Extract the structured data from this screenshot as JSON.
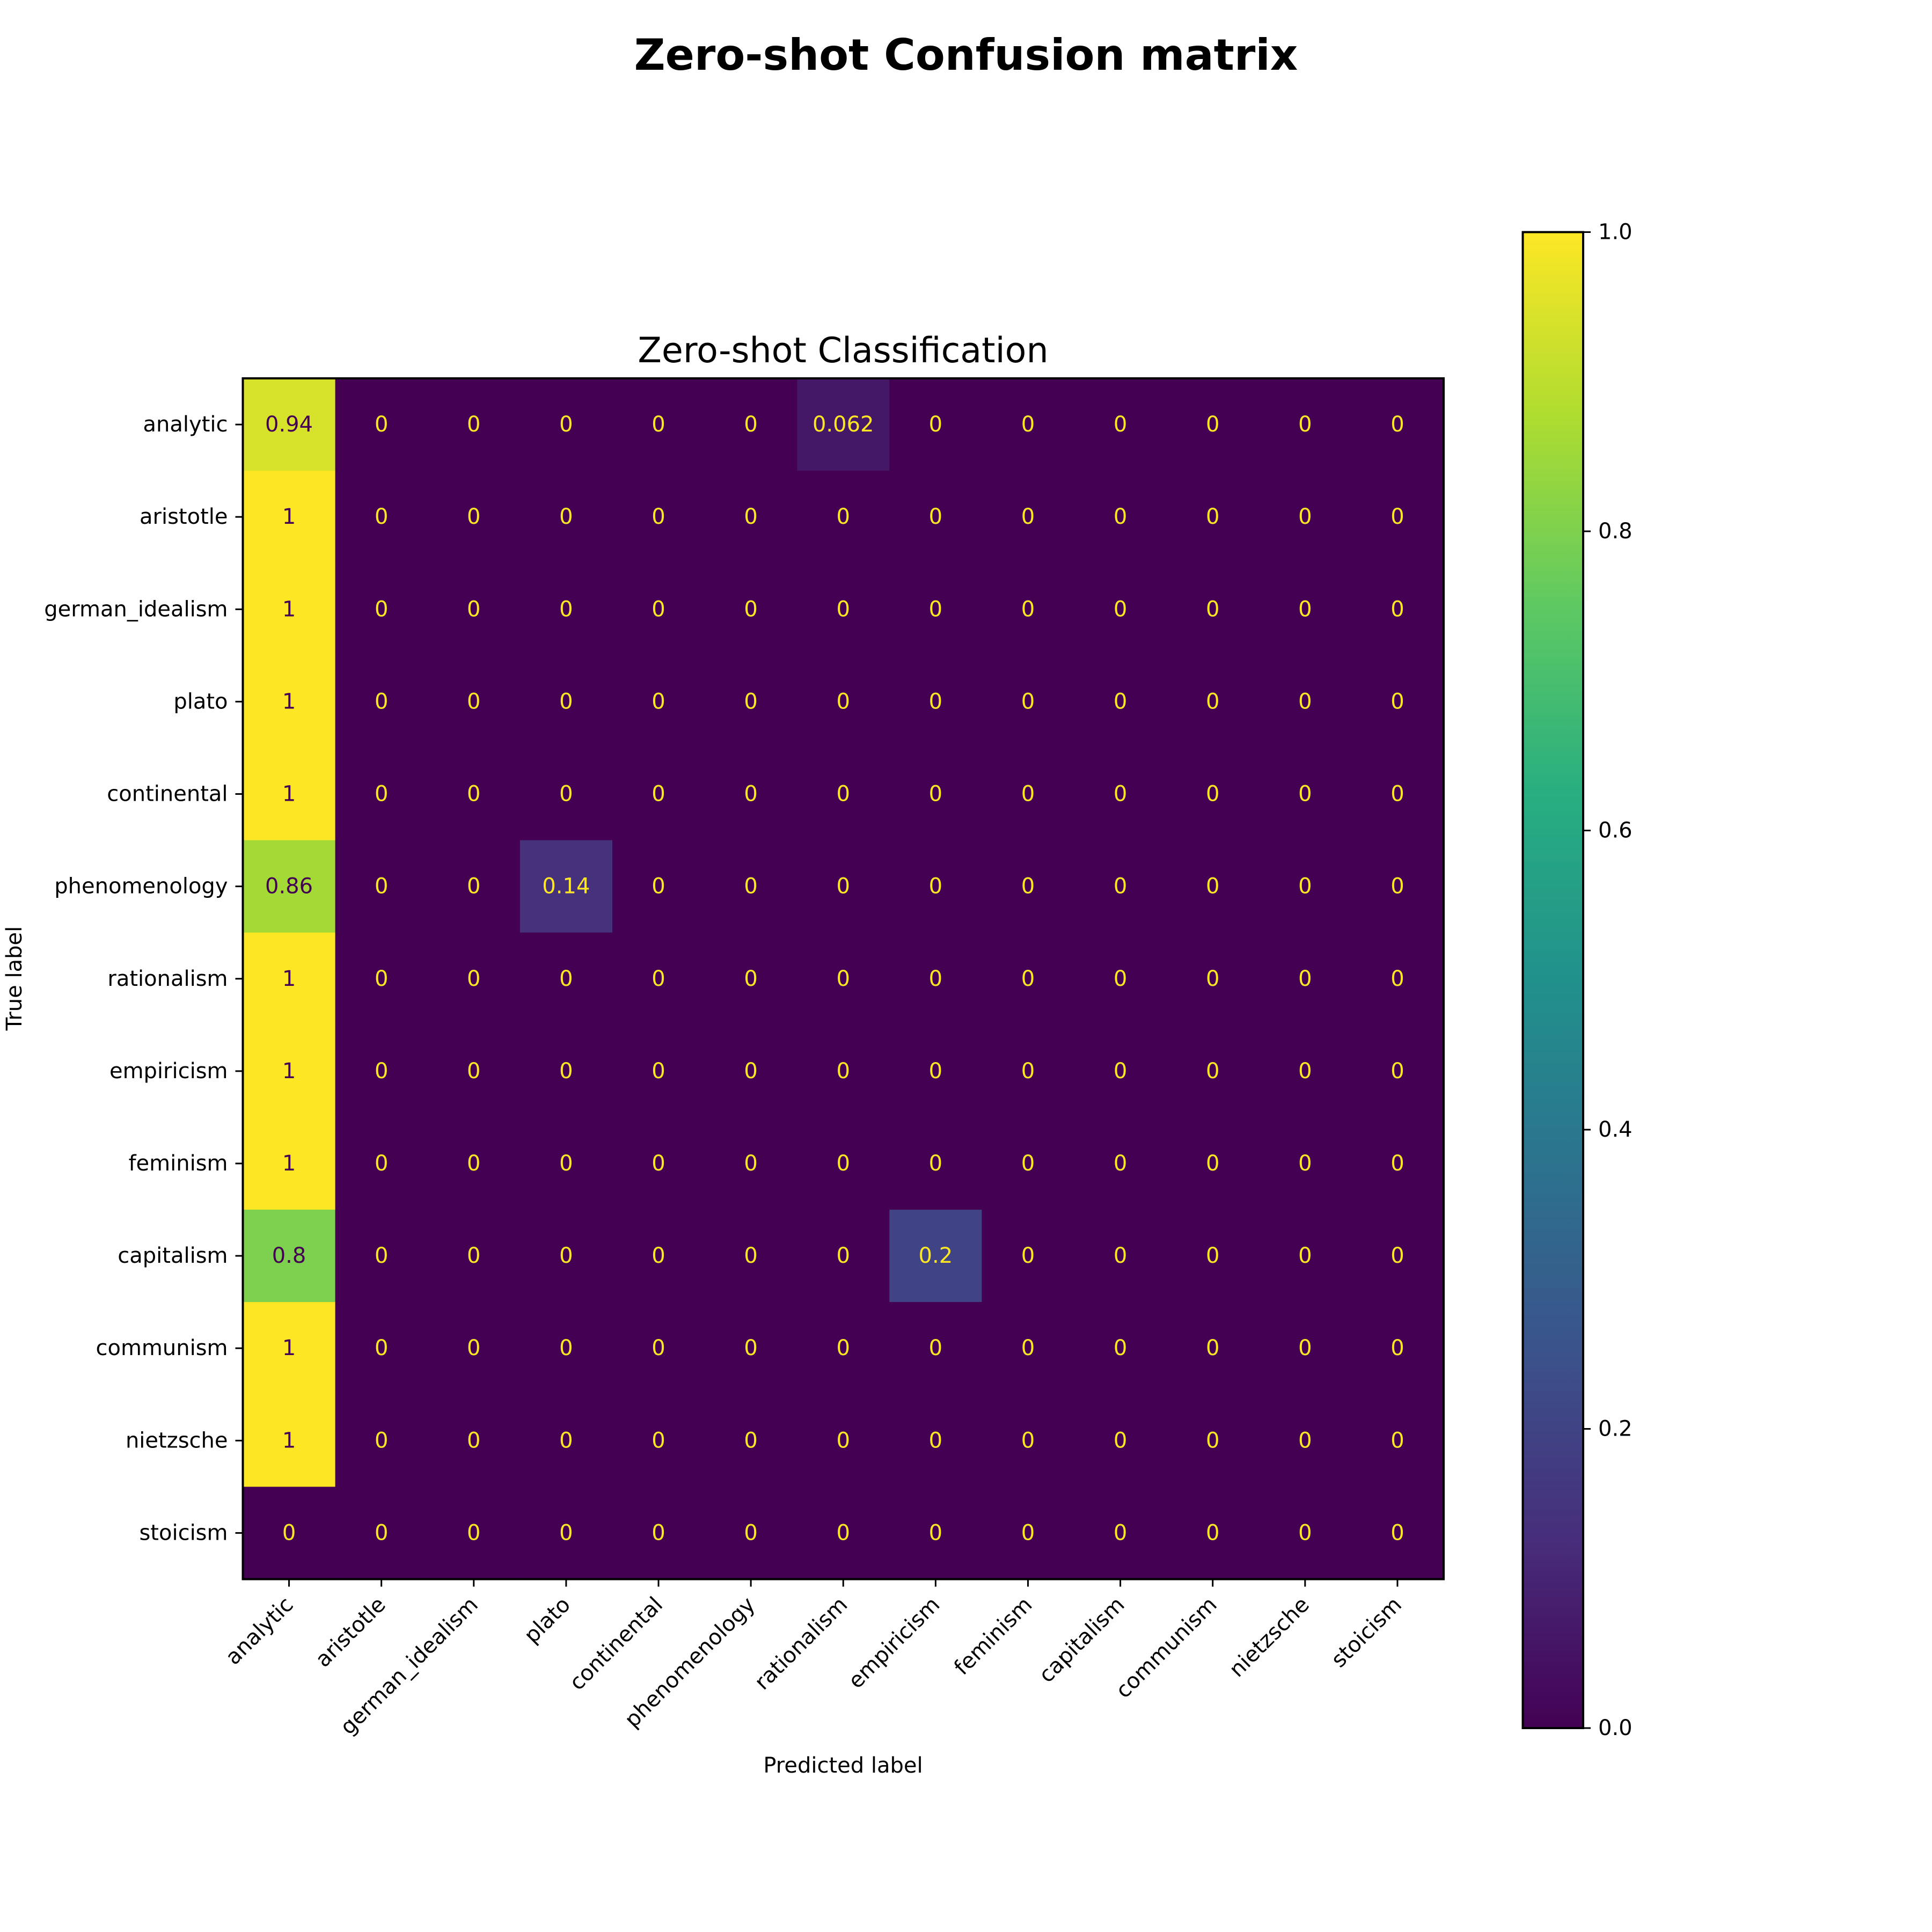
{
  "chart_data": {
    "type": "heatmap",
    "suptitle": "Zero-shot Confusion matrix",
    "title": "Zero-shot Classification",
    "xlabel": "Predicted label",
    "ylabel": "True label",
    "labels": [
      "analytic",
      "aristotle",
      "german_idealism",
      "plato",
      "continental",
      "phenomenology",
      "rationalism",
      "empiricism",
      "feminism",
      "capitalism",
      "communism",
      "nietzsche",
      "stoicism"
    ],
    "matrix": [
      [
        0.94,
        0,
        0,
        0,
        0,
        0,
        0.062,
        0,
        0,
        0,
        0,
        0,
        0
      ],
      [
        1,
        0,
        0,
        0,
        0,
        0,
        0,
        0,
        0,
        0,
        0,
        0,
        0
      ],
      [
        1,
        0,
        0,
        0,
        0,
        0,
        0,
        0,
        0,
        0,
        0,
        0,
        0
      ],
      [
        1,
        0,
        0,
        0,
        0,
        0,
        0,
        0,
        0,
        0,
        0,
        0,
        0
      ],
      [
        1,
        0,
        0,
        0,
        0,
        0,
        0,
        0,
        0,
        0,
        0,
        0,
        0
      ],
      [
        0.86,
        0,
        0,
        0.14,
        0,
        0,
        0,
        0,
        0,
        0,
        0,
        0,
        0
      ],
      [
        1,
        0,
        0,
        0,
        0,
        0,
        0,
        0,
        0,
        0,
        0,
        0,
        0
      ],
      [
        1,
        0,
        0,
        0,
        0,
        0,
        0,
        0,
        0,
        0,
        0,
        0,
        0
      ],
      [
        1,
        0,
        0,
        0,
        0,
        0,
        0,
        0,
        0,
        0,
        0,
        0,
        0
      ],
      [
        0.8,
        0,
        0,
        0,
        0,
        0,
        0,
        0.2,
        0,
        0,
        0,
        0,
        0
      ],
      [
        1,
        0,
        0,
        0,
        0,
        0,
        0,
        0,
        0,
        0,
        0,
        0,
        0
      ],
      [
        1,
        0,
        0,
        0,
        0,
        0,
        0,
        0,
        0,
        0,
        0,
        0,
        0
      ],
      [
        0,
        0,
        0,
        0,
        0,
        0,
        0,
        0,
        0,
        0,
        0,
        0,
        0
      ]
    ],
    "cell_labels": [
      [
        "0.94",
        "0",
        "0",
        "0",
        "0",
        "0",
        "0.062",
        "0",
        "0",
        "0",
        "0",
        "0",
        "0"
      ],
      [
        "1",
        "0",
        "0",
        "0",
        "0",
        "0",
        "0",
        "0",
        "0",
        "0",
        "0",
        "0",
        "0"
      ],
      [
        "1",
        "0",
        "0",
        "0",
        "0",
        "0",
        "0",
        "0",
        "0",
        "0",
        "0",
        "0",
        "0"
      ],
      [
        "1",
        "0",
        "0",
        "0",
        "0",
        "0",
        "0",
        "0",
        "0",
        "0",
        "0",
        "0",
        "0"
      ],
      [
        "1",
        "0",
        "0",
        "0",
        "0",
        "0",
        "0",
        "0",
        "0",
        "0",
        "0",
        "0",
        "0"
      ],
      [
        "0.86",
        "0",
        "0",
        "0.14",
        "0",
        "0",
        "0",
        "0",
        "0",
        "0",
        "0",
        "0",
        "0"
      ],
      [
        "1",
        "0",
        "0",
        "0",
        "0",
        "0",
        "0",
        "0",
        "0",
        "0",
        "0",
        "0",
        "0"
      ],
      [
        "1",
        "0",
        "0",
        "0",
        "0",
        "0",
        "0",
        "0",
        "0",
        "0",
        "0",
        "0",
        "0"
      ],
      [
        "1",
        "0",
        "0",
        "0",
        "0",
        "0",
        "0",
        "0",
        "0",
        "0",
        "0",
        "0",
        "0"
      ],
      [
        "0.8",
        "0",
        "0",
        "0",
        "0",
        "0",
        "0",
        "0.2",
        "0",
        "0",
        "0",
        "0",
        "0"
      ],
      [
        "1",
        "0",
        "0",
        "0",
        "0",
        "0",
        "0",
        "0",
        "0",
        "0",
        "0",
        "0",
        "0"
      ],
      [
        "1",
        "0",
        "0",
        "0",
        "0",
        "0",
        "0",
        "0",
        "0",
        "0",
        "0",
        "0",
        "0"
      ],
      [
        "0",
        "0",
        "0",
        "0",
        "0",
        "0",
        "0",
        "0",
        "0",
        "0",
        "0",
        "0",
        "0"
      ]
    ],
    "colormap": "viridis",
    "vmin": 0,
    "vmax": 1,
    "colorbar": {
      "ticks": [
        0.0,
        0.2,
        0.4,
        0.6,
        0.8,
        1.0
      ],
      "tick_labels": [
        "0.0",
        "0.2",
        "0.4",
        "0.6",
        "0.8",
        "1.0"
      ]
    },
    "text_color_on_dark": "#fde725",
    "text_color_on_light": "#440154",
    "grid": false,
    "x_tick_rotation_deg": 45
  }
}
